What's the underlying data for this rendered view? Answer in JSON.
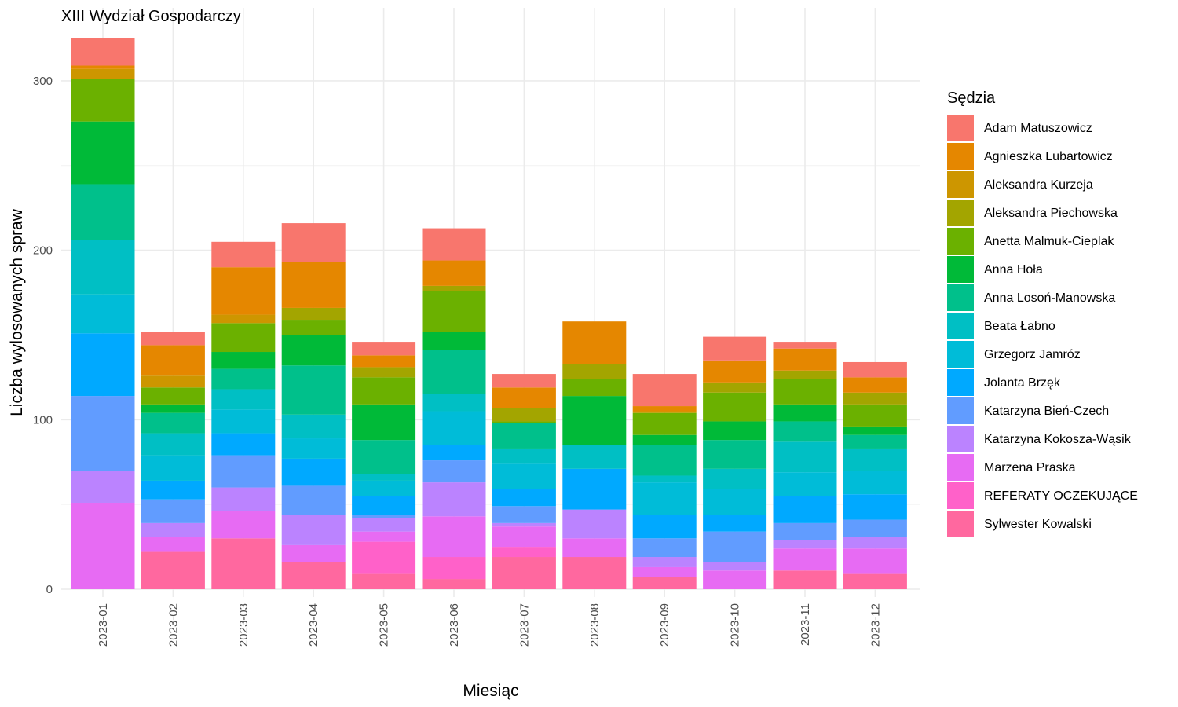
{
  "chart_data": {
    "type": "bar",
    "stacked": true,
    "title": "XIII Wydział Gospodarczy",
    "xlabel": "Miesiąc",
    "ylabel": "Liczba wylosowanych spraw",
    "ylim": [
      0,
      325
    ],
    "yticks": [
      0,
      100,
      200,
      300
    ],
    "grid": true,
    "legend_title": "Sędzia",
    "legend_position": "right",
    "categories": [
      "2023-01",
      "2023-02",
      "2023-03",
      "2023-04",
      "2023-05",
      "2023-06",
      "2023-07",
      "2023-08",
      "2023-09",
      "2023-10",
      "2023-11",
      "2023-12"
    ],
    "series": [
      {
        "name": "Sylwester Kowalski",
        "color": "#FF689F",
        "values": [
          0,
          22,
          30,
          16,
          9,
          6,
          19,
          19,
          7,
          0,
          11,
          9
        ]
      },
      {
        "name": "REFERATY OCZEKUJĄCE",
        "color": "#FF61C9",
        "values": [
          0,
          0,
          0,
          0,
          19,
          13,
          6,
          0,
          0,
          0,
          0,
          0
        ]
      },
      {
        "name": "Marzena Praska",
        "color": "#E76BF3",
        "values": [
          51,
          9,
          16,
          10,
          6,
          24,
          12,
          11,
          6,
          11,
          13,
          15
        ]
      },
      {
        "name": "Katarzyna Kokosza-Wąsik",
        "color": "#BB83FF",
        "values": [
          19,
          8,
          14,
          18,
          8,
          20,
          2,
          17,
          6,
          5,
          5,
          7
        ]
      },
      {
        "name": "Katarzyna Bień-Czech",
        "color": "#619CFF",
        "values": [
          44,
          14,
          19,
          17,
          2,
          13,
          10,
          0,
          11,
          18,
          10,
          10
        ]
      },
      {
        "name": "Jolanta Brzęk",
        "color": "#00A9FF",
        "values": [
          37,
          11,
          13,
          16,
          11,
          9,
          10,
          24,
          14,
          10,
          16,
          15
        ]
      },
      {
        "name": "Grzegorz Jamróz",
        "color": "#00BCD8",
        "values": [
          23,
          15,
          14,
          12,
          9,
          20,
          15,
          0,
          19,
          15,
          14,
          14
        ]
      },
      {
        "name": "Beata Łabno",
        "color": "#00BFC4",
        "values": [
          32,
          13,
          12,
          14,
          4,
          10,
          9,
          14,
          4,
          12,
          18,
          13
        ]
      },
      {
        "name": "Anna Losoń-Manowska",
        "color": "#00C08B",
        "values": [
          33,
          12,
          12,
          29,
          20,
          26,
          15,
          0,
          18,
          17,
          12,
          8
        ]
      },
      {
        "name": "Anna Hoła",
        "color": "#00BA38",
        "values": [
          37,
          5,
          10,
          18,
          21,
          11,
          0,
          29,
          6,
          11,
          10,
          5
        ]
      },
      {
        "name": "Anetta Malmuk-Cieplak",
        "color": "#6BB100",
        "values": [
          25,
          10,
          17,
          9,
          16,
          24,
          1,
          10,
          13,
          17,
          15,
          13
        ]
      },
      {
        "name": "Aleksandra Piechowska",
        "color": "#A3A500",
        "values": [
          0,
          0,
          0,
          7,
          6,
          3,
          8,
          9,
          0,
          6,
          5,
          7
        ]
      },
      {
        "name": "Aleksandra Kurzeja",
        "color": "#CD9600",
        "values": [
          6,
          7,
          5,
          0,
          0,
          0,
          0,
          0,
          1,
          0,
          0,
          0
        ]
      },
      {
        "name": "Agnieszka Lubartowicz",
        "color": "#E58700",
        "values": [
          2,
          18,
          28,
          27,
          7,
          15,
          12,
          25,
          3,
          13,
          13,
          9
        ]
      },
      {
        "name": "Adam Matuszowicz",
        "color": "#F8766D",
        "values": [
          16,
          8,
          15,
          23,
          8,
          19,
          8,
          0,
          19,
          14,
          4,
          9
        ]
      }
    ],
    "legend_order": [
      "Adam Matuszowicz",
      "Agnieszka Lubartowicz",
      "Aleksandra Kurzeja",
      "Aleksandra Piechowska",
      "Anetta Malmuk-Cieplak",
      "Anna Hoła",
      "Anna Losoń-Manowska",
      "Beata Łabno",
      "Grzegorz Jamróz",
      "Jolanta Brzęk",
      "Katarzyna Bień-Czech",
      "Katarzyna Kokosza-Wąsik",
      "Marzena Praska",
      "REFERATY OCZEKUJĄCE",
      "Sylwester Kowalski"
    ]
  }
}
